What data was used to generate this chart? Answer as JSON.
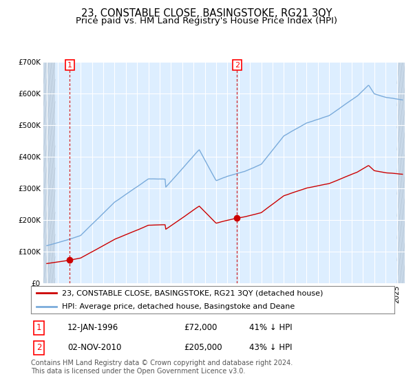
{
  "title": "23, CONSTABLE CLOSE, BASINGSTOKE, RG21 3QY",
  "subtitle": "Price paid vs. HM Land Registry's House Price Index (HPI)",
  "ylim": [
    0,
    700000
  ],
  "yticks": [
    0,
    100000,
    200000,
    300000,
    400000,
    500000,
    600000,
    700000
  ],
  "ytick_labels": [
    "£0",
    "£100K",
    "£200K",
    "£300K",
    "£400K",
    "£500K",
    "£600K",
    "£700K"
  ],
  "bg_color": "#ddeeff",
  "hatch_color": "#c8d8e8",
  "grid_color": "#ffffff",
  "red_line_color": "#cc0000",
  "blue_line_color": "#7aabdb",
  "marker_color": "#cc0000",
  "vline_color": "#cc0000",
  "sale1_date_num": 1996.04,
  "sale1_price": 72000,
  "sale1_label": "12-JAN-1996",
  "sale1_price_label": "£72,000",
  "sale1_pct_label": "41% ↓ HPI",
  "sale2_date_num": 2010.84,
  "sale2_price": 205000,
  "sale2_label": "02-NOV-2010",
  "sale2_price_label": "£205,000",
  "sale2_pct_label": "43% ↓ HPI",
  "legend_label_red": "23, CONSTABLE CLOSE, BASINGSTOKE, RG21 3QY (detached house)",
  "legend_label_blue": "HPI: Average price, detached house, Basingstoke and Deane",
  "footnote": "Contains HM Land Registry data © Crown copyright and database right 2024.\nThis data is licensed under the Open Government Licence v3.0.",
  "xmin": 1993.7,
  "xmax": 2025.7,
  "hatch_left_end": 1994.75,
  "hatch_right_start": 2025.0,
  "title_fontsize": 10.5,
  "subtitle_fontsize": 9.5,
  "tick_fontsize": 7.5,
  "legend_fontsize": 8,
  "footnote_fontsize": 7
}
